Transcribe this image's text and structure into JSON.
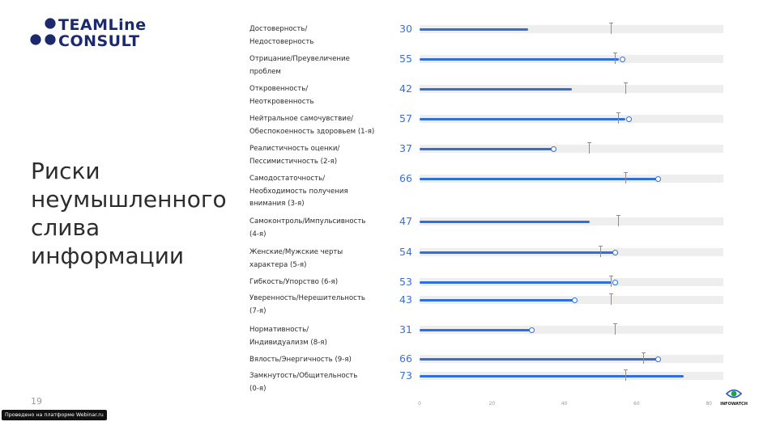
{
  "logo": {
    "line1": "TEAMLine",
    "line2": "CONSULT",
    "colors": {
      "dots": "#1c2a6b"
    }
  },
  "section_title": {
    "lines": [
      "Риски",
      "неумышленного",
      "слива",
      "информации"
    ]
  },
  "page_number": "19",
  "platform_badge": "Проведено на платформе Webinar.ru",
  "infowatch_logo": {
    "text": "INFOWATCH",
    "colors": {
      "primary": "#1fa34a",
      "secondary": "#2a5bb8"
    }
  },
  "chart_data": {
    "type": "bar",
    "orientation": "horizontal",
    "categories": [
      [
        "Достоверность/",
        "Недостоверность"
      ],
      [
        "Отрицание/Преувеличение",
        "проблем"
      ],
      [
        "Откровенность/",
        "Неоткровенность"
      ],
      [
        "Нейтральное самочувствие/",
        "Обеспокоенность здоровьем (1-я)"
      ],
      [
        "Реалистичность оценки/",
        "Пессимистичность (2-я)"
      ],
      [
        "Самодостаточность/",
        "Необходимость получения",
        "внимания (3-я)"
      ],
      [
        "Самоконтроль/Импульсивность",
        "(4-я)"
      ],
      [
        "Женские/Мужские черты",
        "характера (5-я)"
      ],
      [
        "Гибкость/Упорство (6-я)"
      ],
      [
        "Уверенность/Нерешительность",
        "(7-я)"
      ],
      [
        "Нормативность/",
        "Индивидуализм (8-я)"
      ],
      [
        "Вялость/Энергичность (9-я)"
      ],
      [
        "Замкнутость/Общительность",
        "(0-я)"
      ]
    ],
    "values": [
      30,
      55,
      42,
      57,
      37,
      66,
      47,
      54,
      53,
      43,
      31,
      66,
      73
    ],
    "markers": [
      null,
      56,
      null,
      58,
      37,
      66,
      null,
      54,
      54,
      43,
      31,
      66,
      null
    ],
    "norms": [
      53,
      54,
      57,
      55,
      47,
      57,
      55,
      50,
      53,
      53,
      54,
      62,
      57
    ],
    "xlim": [
      0,
      84
    ],
    "xticks": [
      "0",
      "20",
      "40",
      "60",
      "80"
    ],
    "xtick_values": [
      0,
      20,
      40,
      60,
      80
    ],
    "colors": {
      "bar": "#2f6fdc",
      "value_text": "#3b6fd4",
      "track": "#eeeeee",
      "norm": "#8d8d8d"
    }
  }
}
